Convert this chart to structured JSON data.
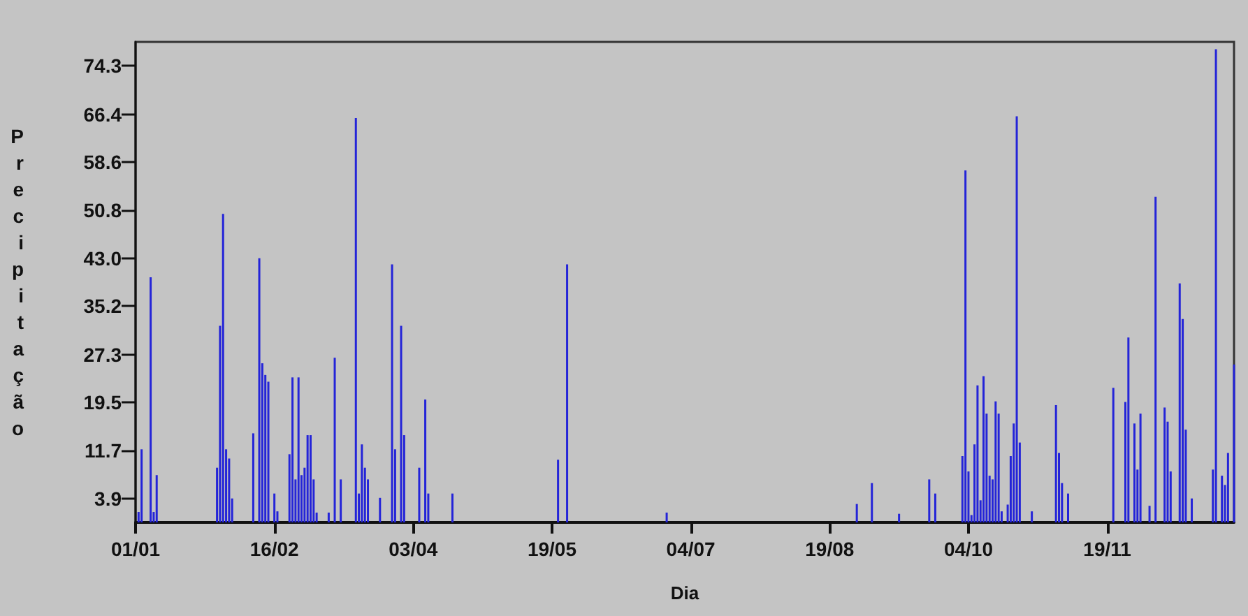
{
  "chart_data": {
    "type": "bar",
    "xlabel": "Dia",
    "ylabel": "Precipitação",
    "x": [
      "--01-02",
      "--01-03",
      "--01-06",
      "--01-07",
      "--01-08",
      "--01-28",
      "--01-29",
      "--01-30",
      "--01-31",
      "--02-01",
      "--02-02",
      "--02-09",
      "--02-11",
      "--02-12",
      "--02-13",
      "--02-14",
      "--02-16",
      "--02-17",
      "--02-21",
      "--02-22",
      "--02-23",
      "--02-24",
      "--02-25",
      "--02-26",
      "--02-27",
      "--02-28",
      "--03-01",
      "--03-02",
      "--03-06",
      "--03-08",
      "--03-10",
      "--03-15",
      "--03-16",
      "--03-17",
      "--03-18",
      "--03-19",
      "--03-23",
      "--03-27",
      "--03-28",
      "--03-30",
      "--03-31",
      "--04-05",
      "--04-07",
      "--04-08",
      "--04-16",
      "--05-21",
      "--05-24",
      "--06-26",
      "--08-28",
      "--09-02",
      "--09-11",
      "--09-21",
      "--09-23",
      "--10-02",
      "--10-03",
      "--10-04",
      "--10-05",
      "--10-06",
      "--10-07",
      "--10-08",
      "--10-09",
      "--10-10",
      "--10-11",
      "--10-12",
      "--10-13",
      "--10-14",
      "--10-15",
      "--10-17",
      "--10-18",
      "--10-19",
      "--10-20",
      "--10-21",
      "--10-25",
      "--11-02",
      "--11-03",
      "--11-04",
      "--11-06",
      "--11-21",
      "--11-25",
      "--11-26",
      "--11-28",
      "--11-29",
      "--11-30",
      "--12-03",
      "--12-05",
      "--12-08",
      "--12-09",
      "--12-10",
      "--12-13",
      "--12-14",
      "--12-15",
      "--12-17",
      "--12-24",
      "--12-25",
      "--12-27",
      "--12-28",
      "--12-29",
      "--12-31"
    ],
    "values": [
      1.7,
      11.9,
      39.9,
      1.7,
      7.7,
      8.9,
      32.0,
      50.2,
      11.9,
      10.4,
      3.9,
      14.5,
      43.0,
      25.9,
      24.0,
      22.9,
      4.7,
      1.8,
      11.1,
      23.6,
      7.0,
      23.6,
      7.7,
      8.9,
      14.2,
      14.2,
      7.0,
      1.6,
      1.6,
      26.8,
      7.0,
      65.8,
      4.7,
      12.7,
      8.9,
      7.0,
      4.0,
      42.0,
      11.9,
      32.0,
      14.2,
      8.9,
      20.0,
      4.7,
      4.7,
      10.2,
      42.0,
      1.6,
      3.0,
      6.4,
      1.4,
      7.0,
      4.7,
      10.8,
      57.3,
      8.3,
      1.2,
      12.7,
      22.3,
      3.6,
      23.8,
      17.7,
      7.6,
      7.0,
      19.7,
      17.7,
      1.8,
      2.9,
      10.8,
      16.1,
      66.1,
      13.0,
      1.8,
      19.1,
      11.3,
      6.4,
      4.7,
      21.9,
      19.6,
      30.1,
      16.1,
      8.6,
      17.7,
      2.7,
      53.0,
      18.7,
      16.4,
      8.3,
      38.9,
      33.1,
      15.1,
      3.9,
      8.6,
      77.0,
      7.6,
      6.1,
      11.3,
      25.7
    ],
    "color": "#2424d8",
    "xlim": [
      "--01-01",
      "--12-31"
    ],
    "xticks": [
      {
        "value": "--01-01",
        "label": "01/01"
      },
      {
        "value": "--02-16",
        "label": "16/02"
      },
      {
        "value": "--04-03",
        "label": "03/04"
      },
      {
        "value": "--05-19",
        "label": "19/05"
      },
      {
        "value": "--07-04",
        "label": "04/07"
      },
      {
        "value": "--08-19",
        "label": "19/08"
      },
      {
        "value": "--10-04",
        "label": "04/10"
      },
      {
        "value": "--11-19",
        "label": "19/11"
      }
    ],
    "ylim": [
      0,
      78.2
    ],
    "yticks": [
      3.9,
      11.7,
      19.5,
      27.3,
      35.2,
      {
        "value": 43,
        "label": "43.0"
      },
      50.8,
      58.6,
      66.4,
      74.3
    ],
    "grid": false
  }
}
